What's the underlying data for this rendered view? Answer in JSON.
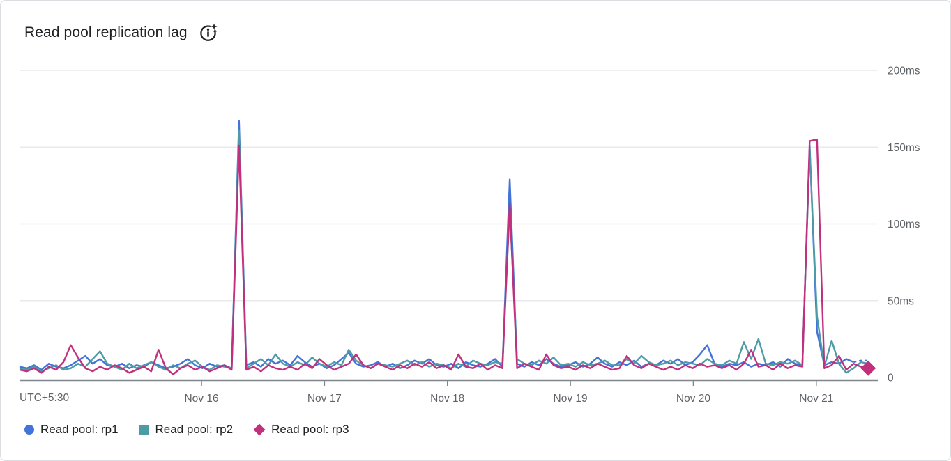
{
  "header": {
    "title": "Read pool replication lag",
    "info_icon": "info-refresh-sparkle-icon"
  },
  "chart_data": {
    "type": "line",
    "title": "Read pool replication lag",
    "xlabel": "",
    "ylabel": "",
    "y_unit": "ms",
    "ylim": [
      0,
      200
    ],
    "xlim": [
      0.52,
      7.5
    ],
    "grid": "horizontal-only",
    "legend_position": "bottom-left",
    "timezone_label": "UTC+5:30",
    "x_encoding": {
      "start": 0.52,
      "step": 0.0595,
      "count": 117,
      "unit": "days since Nov 14 00:00 (UTC+5:30)"
    },
    "x_ticks": [
      {
        "t": 2,
        "label": "Nov 16"
      },
      {
        "t": 3,
        "label": "Nov 17"
      },
      {
        "t": 4,
        "label": "Nov 18"
      },
      {
        "t": 5,
        "label": "Nov 19"
      },
      {
        "t": 6,
        "label": "Nov 20"
      },
      {
        "t": 7,
        "label": "Nov 21"
      }
    ],
    "y_ticks": [
      {
        "v": 0,
        "label": "0"
      },
      {
        "v": 50,
        "label": "50ms"
      },
      {
        "v": 100,
        "label": "100ms"
      },
      {
        "v": 150,
        "label": "150ms"
      },
      {
        "v": 200,
        "label": "200ms"
      }
    ],
    "series": [
      {
        "name": "Read pool: rp1",
        "color": "#4273d9",
        "marker": "circle",
        "dashed_tail_points": 3,
        "values": [
          7,
          6,
          8,
          5,
          9,
          7,
          6,
          8,
          11,
          14,
          9,
          12,
          8,
          7,
          9,
          6,
          8,
          7,
          10,
          8,
          6,
          7,
          9,
          12,
          8,
          6,
          9,
          7,
          8,
          6,
          167,
          8,
          10,
          7,
          12,
          9,
          11,
          8,
          14,
          10,
          7,
          9,
          6,
          8,
          12,
          16,
          9,
          7,
          8,
          10,
          7,
          9,
          6,
          8,
          11,
          9,
          12,
          8,
          7,
          9,
          6,
          10,
          8,
          7,
          9,
          12,
          7,
          129,
          9,
          7,
          10,
          8,
          12,
          9,
          7,
          8,
          10,
          7,
          9,
          13,
          9,
          7,
          10,
          8,
          11,
          7,
          9,
          8,
          11,
          9,
          12,
          8,
          10,
          15,
          21,
          9,
          7,
          9,
          8,
          10,
          7,
          9,
          8,
          10,
          7,
          12,
          9,
          8,
          151,
          30,
          8,
          10,
          9,
          12,
          10,
          11,
          11
        ]
      },
      {
        "name": "Read pool: rp2",
        "color": "#4d9ba6",
        "marker": "square",
        "values": [
          6,
          5,
          7,
          4,
          6,
          8,
          5,
          6,
          9,
          7,
          12,
          17,
          9,
          7,
          5,
          9,
          6,
          8,
          10,
          7,
          5,
          8,
          6,
          9,
          11,
          7,
          5,
          8,
          7,
          6,
          161,
          6,
          9,
          12,
          8,
          15,
          9,
          7,
          10,
          8,
          13,
          9,
          7,
          10,
          8,
          18,
          11,
          8,
          6,
          9,
          8,
          7,
          9,
          11,
          8,
          10,
          7,
          9,
          8,
          6,
          9,
          7,
          11,
          9,
          8,
          10,
          9,
          111,
          12,
          9,
          8,
          11,
          9,
          13,
          8,
          9,
          7,
          10,
          8,
          9,
          11,
          8,
          8,
          12,
          9,
          14,
          10,
          8,
          9,
          11,
          8,
          10,
          9,
          8,
          12,
          9,
          8,
          11,
          9,
          23,
          12,
          25,
          9,
          8,
          10,
          9,
          11,
          8,
          149,
          40,
          7,
          24,
          9,
          3,
          6,
          10,
          9
        ]
      },
      {
        "name": "Read pool: rp3",
        "color": "#c0307c",
        "marker": "diamond",
        "end_marker": true,
        "values": [
          5,
          4,
          6,
          3,
          7,
          5,
          10,
          21,
          13,
          6,
          4,
          7,
          5,
          8,
          6,
          3,
          5,
          7,
          4,
          18,
          6,
          2,
          6,
          8,
          5,
          7,
          4,
          6,
          8,
          5,
          151,
          5,
          7,
          4,
          8,
          6,
          5,
          7,
          5,
          9,
          6,
          12,
          8,
          5,
          7,
          9,
          15,
          8,
          6,
          9,
          7,
          5,
          8,
          6,
          9,
          7,
          10,
          6,
          8,
          5,
          15,
          7,
          6,
          9,
          5,
          8,
          6,
          113,
          6,
          9,
          7,
          5,
          15,
          8,
          6,
          7,
          5,
          8,
          6,
          9,
          7,
          5,
          6,
          14,
          8,
          6,
          9,
          7,
          5,
          7,
          5,
          8,
          6,
          9,
          7,
          8,
          6,
          8,
          5,
          9,
          18,
          7,
          8,
          5,
          9,
          6,
          8,
          7,
          154,
          155,
          6,
          8,
          14,
          5,
          9,
          7,
          6
        ]
      }
    ]
  }
}
